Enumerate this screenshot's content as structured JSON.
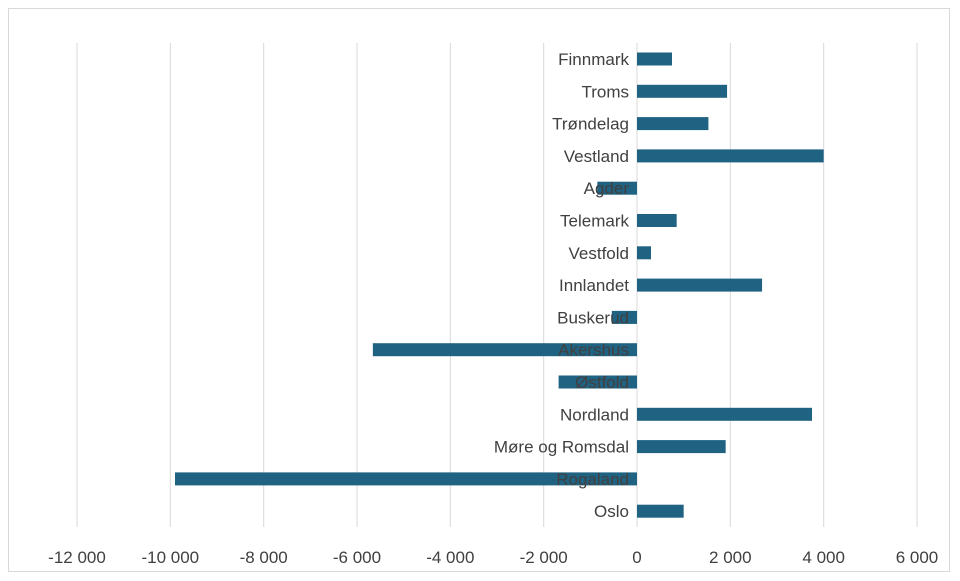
{
  "chart_data": {
    "type": "bar",
    "orientation": "horizontal",
    "categories": [
      "Finnmark",
      "Troms",
      "Trøndelag",
      "Vestland",
      "Agder",
      "Telemark",
      "Vestfold",
      "Innlandet",
      "Buskerud",
      "Akershus",
      "Østfold",
      "Nordland",
      "Møre og Romsdal",
      "Rogaland",
      "Oslo"
    ],
    "values": [
      750,
      1930,
      1530,
      4000,
      -850,
      850,
      300,
      2680,
      -540,
      -5660,
      -1680,
      3750,
      1900,
      -9900,
      1000
    ],
    "xlim": [
      -12000,
      6000
    ],
    "xticks": [
      -12000,
      -10000,
      -8000,
      -6000,
      -4000,
      -2000,
      0,
      2000,
      4000,
      6000
    ],
    "xtick_labels": [
      "-12 000",
      "-10 000",
      "-8 000",
      "-6 000",
      "-4 000",
      "-2 000",
      "0",
      "2 000",
      "4 000",
      "6 000"
    ],
    "title": "",
    "xlabel": "",
    "ylabel": "",
    "grid": "vertical",
    "legend": "none",
    "bar_color": "#1f6282",
    "grid_color": "#d9d9d9",
    "label_color": "#404040"
  }
}
